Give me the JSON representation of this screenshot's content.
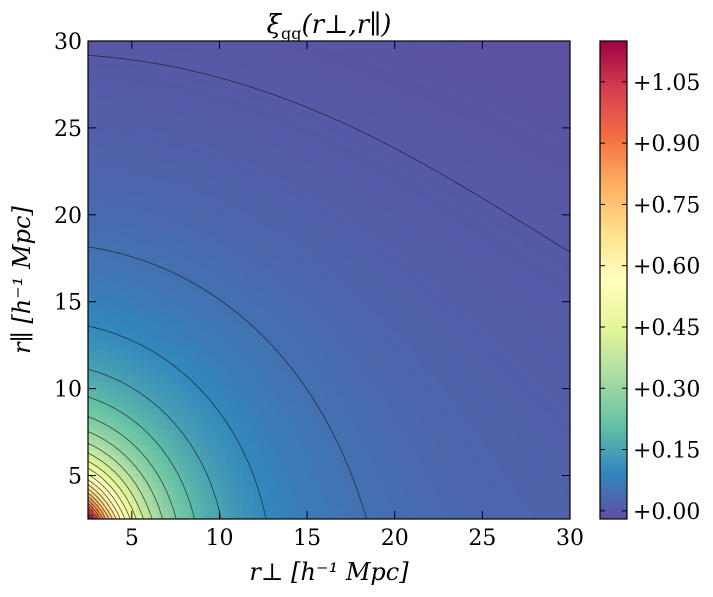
{
  "chart_data": {
    "type": "heatmap",
    "title": "ξgg(r⊥,r∥)",
    "title_parts": {
      "symbol": "ξ",
      "subscript": "gg",
      "args": "(r⊥,r∥)"
    },
    "xlabel": "r⊥  [h⁻¹ Mpc]",
    "ylabel": "r∥  [h⁻¹ Mpc]",
    "xlim": [
      2.5,
      30
    ],
    "ylim": [
      2.5,
      30
    ],
    "x_ticks": [
      5,
      10,
      15,
      20,
      25,
      30
    ],
    "y_ticks": [
      5,
      10,
      15,
      20,
      25,
      30
    ],
    "x_tick_labels": [
      "5",
      "10",
      "15",
      "20",
      "25",
      "30"
    ],
    "y_tick_labels": [
      "5",
      "10",
      "15",
      "20",
      "25",
      "30"
    ],
    "colormap": "Spectral_r",
    "colorbar": {
      "range": [
        -0.02,
        1.15
      ],
      "ticks": [
        0.0,
        0.15,
        0.3,
        0.45,
        0.6,
        0.75,
        0.9,
        1.05
      ],
      "tick_labels": [
        "+0.00",
        "+0.15",
        "+0.30",
        "+0.45",
        "+0.60",
        "+0.75",
        "+0.90",
        "+1.05"
      ]
    },
    "contour_levels": [
      0.0,
      0.05,
      0.1,
      0.15,
      0.2,
      0.25,
      0.3,
      0.35,
      0.4,
      0.45,
      0.5,
      0.55,
      0.6,
      0.65,
      0.7,
      0.75,
      0.8,
      0.85,
      0.9,
      0.95,
      1.0,
      1.05,
      1.1
    ],
    "grid": false,
    "legend": "none"
  }
}
